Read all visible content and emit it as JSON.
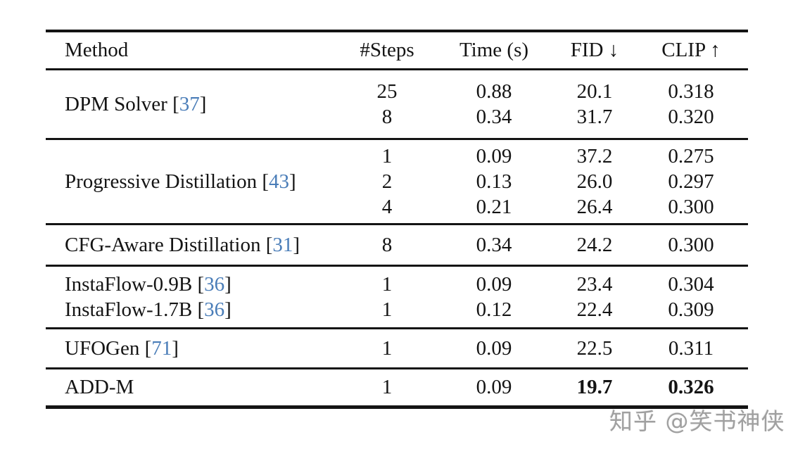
{
  "watermark": {
    "text": "知乎 @笑书神侠",
    "color": "#a0a0a0"
  },
  "table": {
    "columns": [
      "Method",
      "#Steps",
      "Time (s)",
      "FID ↓",
      "CLIP ↑"
    ],
    "citation_color": "#4a7db8",
    "text_color": "#141414",
    "groups": [
      {
        "method_lines": [
          {
            "text": "DPM Solver",
            "cite": "37"
          }
        ],
        "rows": [
          {
            "steps": "25",
            "time": "0.88",
            "fid": "20.1",
            "clip": "0.318"
          },
          {
            "steps": "8",
            "time": "0.34",
            "fid": "31.7",
            "clip": "0.320"
          }
        ]
      },
      {
        "method_lines": [
          {
            "text": "Progressive Distillation",
            "cite": "43"
          }
        ],
        "rows": [
          {
            "steps": "1",
            "time": "0.09",
            "fid": "37.2",
            "clip": "0.275"
          },
          {
            "steps": "2",
            "time": "0.13",
            "fid": "26.0",
            "clip": "0.297"
          },
          {
            "steps": "4",
            "time": "0.21",
            "fid": "26.4",
            "clip": "0.300"
          }
        ]
      },
      {
        "method_lines": [
          {
            "text": "CFG-Aware Distillation",
            "cite": "31"
          }
        ],
        "rows": [
          {
            "steps": "8",
            "time": "0.34",
            "fid": "24.2",
            "clip": "0.300"
          }
        ]
      },
      {
        "method_lines": [
          {
            "text": "InstaFlow-0.9B",
            "cite": "36"
          },
          {
            "text": "InstaFlow-1.7B",
            "cite": "36"
          }
        ],
        "rows": [
          {
            "steps": "1",
            "time": "0.09",
            "fid": "23.4",
            "clip": "0.304"
          },
          {
            "steps": "1",
            "time": "0.12",
            "fid": "22.4",
            "clip": "0.309"
          }
        ]
      },
      {
        "method_lines": [
          {
            "text": "UFOGen",
            "cite": "71"
          }
        ],
        "rows": [
          {
            "steps": "1",
            "time": "0.09",
            "fid": "22.5",
            "clip": "0.311"
          }
        ]
      },
      {
        "method_lines": [
          {
            "text": "ADD-M",
            "cite": null
          }
        ],
        "rows": [
          {
            "steps": "1",
            "time": "0.09",
            "fid": "19.7",
            "clip": "0.326",
            "bold": [
              "fid",
              "clip"
            ]
          }
        ]
      }
    ]
  }
}
